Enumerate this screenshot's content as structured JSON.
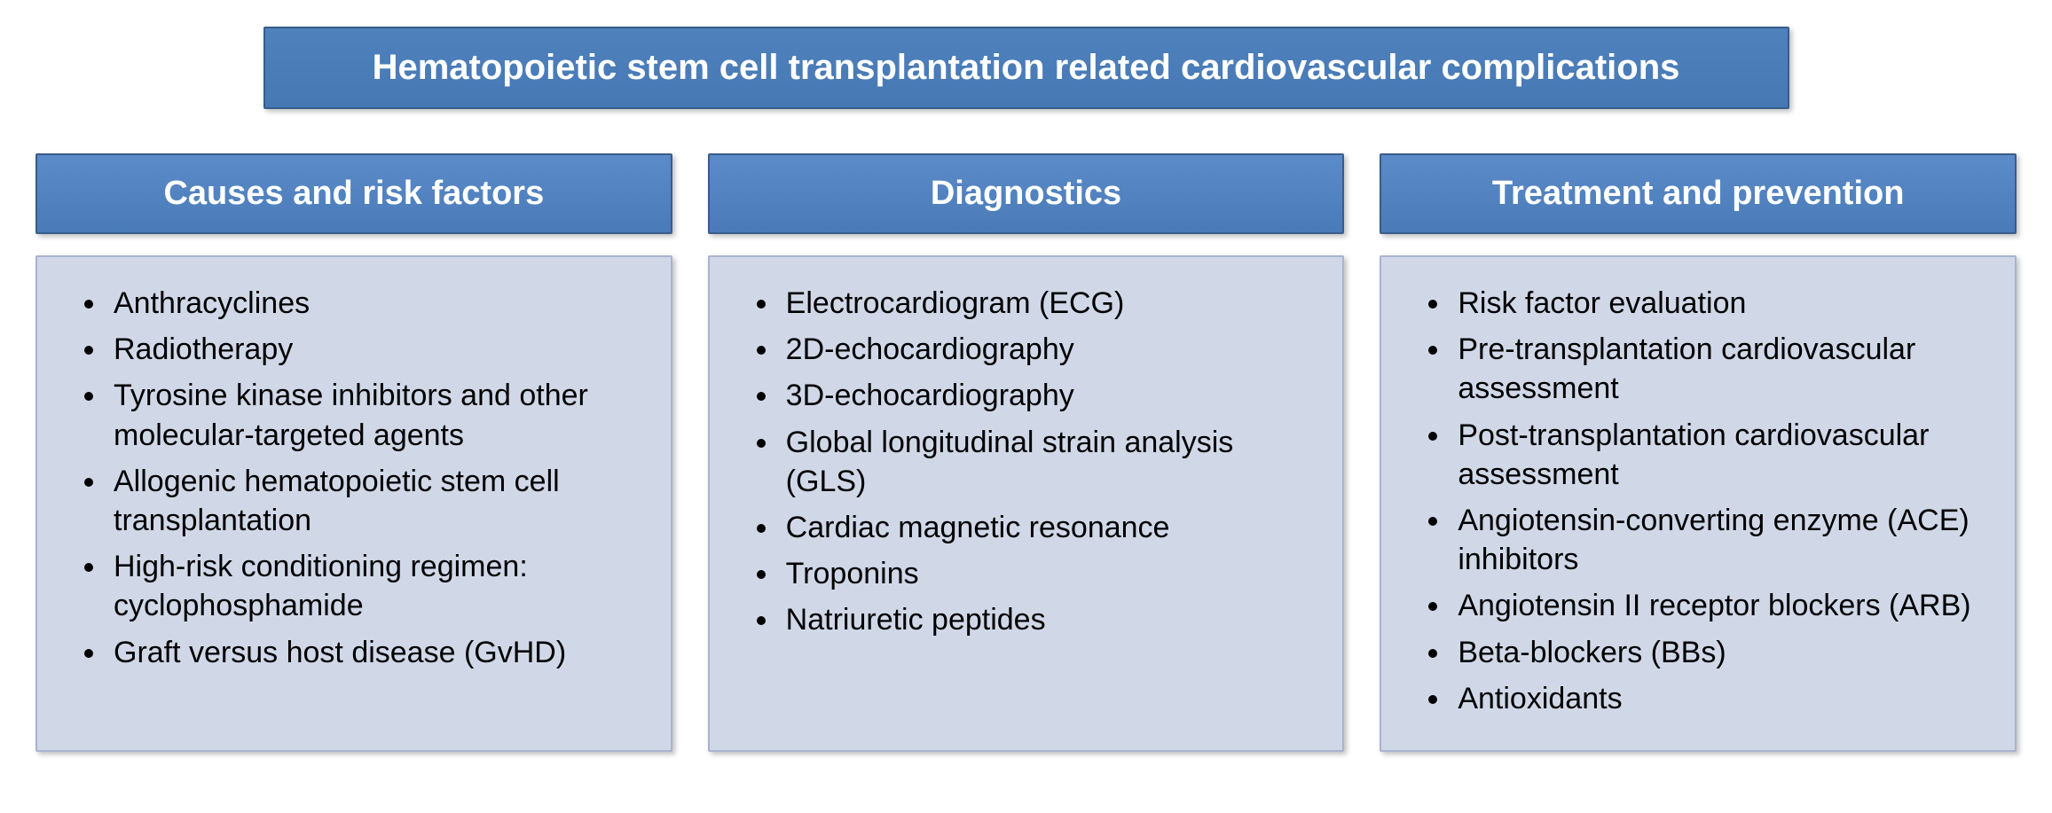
{
  "title": "Hematopoietic stem cell transplantation related cardiovascular complications",
  "style": {
    "header_bg_top": "#5b8bc9",
    "header_bg_bottom": "#4a7bb8",
    "header_border": "#385d8a",
    "body_bg": "#d0d8e8",
    "body_border": "#a7b4cf",
    "title_bg_top": "#4f81bd",
    "title_bg_bottom": "#4678b4",
    "text_color": "#ffffff",
    "bullet_text_color": "#000000",
    "shadow": "3px 3px 6px rgba(0,0,0,0.25)",
    "title_fontsize": 40,
    "header_fontsize": 38,
    "bullet_fontsize": 34
  },
  "columns": [
    {
      "header": "Causes and risk factors",
      "items": [
        "Anthracyclines",
        "Radiotherapy",
        "Tyrosine kinase inhibitors and other molecular-targeted agents",
        "Allogenic hematopoietic stem cell transplantation",
        "High-risk conditioning regimen: cyclophosphamide",
        "Graft versus host disease (GvHD)"
      ]
    },
    {
      "header": "Diagnostics",
      "items": [
        "Electrocardiogram (ECG)",
        "2D-echocardiography",
        "3D-echocardiography",
        "Global longitudinal strain analysis (GLS)",
        "Cardiac magnetic resonance",
        "Troponins",
        "Natriuretic peptides"
      ]
    },
    {
      "header": "Treatment and prevention",
      "items": [
        "Risk factor evaluation",
        "Pre-transplantation cardiovascular assessment",
        "Post-transplantation cardiovascular assessment",
        "Angiotensin-converting enzyme (ACE) inhibitors",
        "Angiotensin II receptor blockers (ARB)",
        "Beta-blockers (BBs)",
        "Antioxidants"
      ]
    }
  ]
}
